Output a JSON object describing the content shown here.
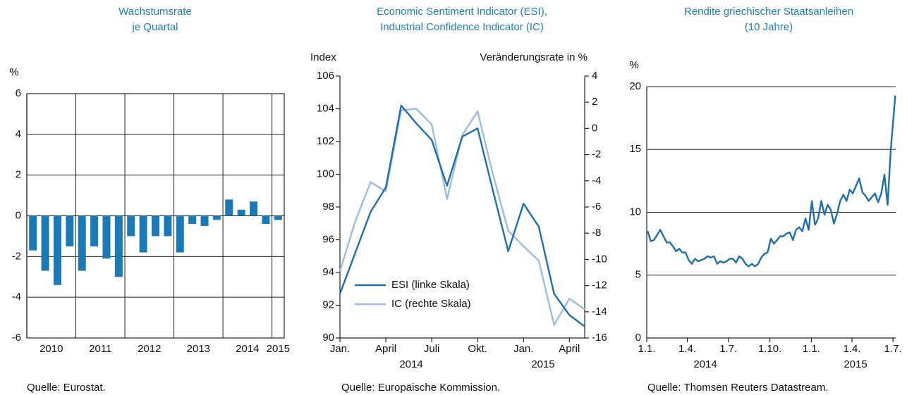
{
  "chart_data": [
    {
      "type": "bar",
      "title": [
        "Wachstumsrate",
        "je Quartal"
      ],
      "y_unit": "%",
      "groups": [
        {
          "label": "2010",
          "values": [
            -1.7,
            -2.7,
            -3.4,
            -1.5
          ]
        },
        {
          "label": "2011",
          "values": [
            -2.7,
            -1.5,
            -2.1,
            -3.0
          ]
        },
        {
          "label": "2012",
          "values": [
            -1.0,
            -1.8,
            -1.0,
            -1.0
          ]
        },
        {
          "label": "2013",
          "values": [
            -1.8,
            -0.4,
            -0.5,
            -0.2
          ]
        },
        {
          "label": "2014",
          "values": [
            0.8,
            0.3,
            0.7,
            -0.4
          ]
        },
        {
          "label": "2015",
          "values": [
            -0.2
          ]
        }
      ],
      "color": "#1a7ab8",
      "ylim": [
        -6,
        6
      ],
      "yticks": [
        -6,
        -4,
        -2,
        0,
        2,
        4,
        6
      ],
      "grid": true,
      "source": "Quelle: Eurostat."
    },
    {
      "type": "line",
      "title": [
        "Economic Sentiment Indicator (ESI),",
        "Industrial Confidence Indicator (IC)"
      ],
      "y_label": "Index",
      "y2_label": "Veränderungsrate in %",
      "categories": [
        "Jan.",
        null,
        null,
        "April",
        null,
        null,
        "Juli",
        null,
        null,
        "Okt.",
        null,
        null,
        "Jan.",
        null,
        null,
        "April",
        null
      ],
      "years": [
        "2014",
        "2015"
      ],
      "series": [
        {
          "name": "ESI (linke Skala)",
          "color": "#1f6fad",
          "values": [
            92.7,
            95.2,
            97.7,
            99.2,
            104.2,
            103.1,
            102.1,
            99.3,
            102.3,
            102.8,
            99.0,
            95.3,
            98.2,
            96.8,
            92.7,
            91.4,
            90.7
          ]
        },
        {
          "name": "IC (rechte Skala)",
          "color": "#9bbde0",
          "axis": "y2",
          "values": [
            -10.9,
            -7.1,
            -4.1,
            -4.8,
            1.4,
            1.5,
            0.3,
            -5.4,
            -0.5,
            1.3,
            -3.5,
            -7.8,
            -9.0,
            -10.1,
            -15.0,
            -13.0,
            -13.8
          ]
        }
      ],
      "ylim": [
        90,
        106
      ],
      "yticks": [
        90,
        92,
        94,
        96,
        98,
        100,
        102,
        104,
        106
      ],
      "y2lim": [
        -16,
        4
      ],
      "y2ticks": [
        -16,
        -14,
        -12,
        -10,
        -8,
        -6,
        -4,
        -2,
        0,
        2,
        4
      ],
      "legend": "lower left",
      "source": "Quelle: Europäische Kommission."
    },
    {
      "type": "line",
      "title": [
        "Rendite griechischer Staatsanleihen",
        "(10 Jahre)"
      ],
      "y_unit": "%",
      "x": [
        "2014-01-03",
        "2014-01-10",
        "2014-01-17",
        "2014-01-24",
        "2014-01-31",
        "2014-02-07",
        "2014-02-14",
        "2014-02-21",
        "2014-02-28",
        "2014-03-07",
        "2014-03-14",
        "2014-03-21",
        "2014-03-28",
        "2014-04-04",
        "2014-04-11",
        "2014-04-18",
        "2014-04-25",
        "2014-05-02",
        "2014-05-09",
        "2014-05-16",
        "2014-05-23",
        "2014-05-30",
        "2014-06-06",
        "2014-06-13",
        "2014-06-20",
        "2014-06-27",
        "2014-07-04",
        "2014-07-11",
        "2014-07-18",
        "2014-07-25",
        "2014-08-01",
        "2014-08-08",
        "2014-08-15",
        "2014-08-22",
        "2014-08-29",
        "2014-09-05",
        "2014-09-12",
        "2014-09-19",
        "2014-09-26",
        "2014-10-03",
        "2014-10-10",
        "2014-10-17",
        "2014-10-24",
        "2014-10-31",
        "2014-11-07",
        "2014-11-14",
        "2014-11-21",
        "2014-11-28",
        "2014-12-05",
        "2014-12-12",
        "2014-12-19",
        "2014-12-26",
        "2015-01-02",
        "2015-01-09",
        "2015-01-16",
        "2015-01-23",
        "2015-01-30",
        "2015-02-06",
        "2015-02-13",
        "2015-02-20",
        "2015-02-27",
        "2015-03-06",
        "2015-03-13",
        "2015-03-20",
        "2015-03-27",
        "2015-04-03",
        "2015-04-10",
        "2015-04-17",
        "2015-04-24",
        "2015-05-01",
        "2015-05-08",
        "2015-05-15",
        "2015-05-22",
        "2015-05-29",
        "2015-06-05",
        "2015-06-12",
        "2015-06-19",
        "2015-06-26",
        "2015-07-06"
      ],
      "values": [
        8.5,
        7.7,
        7.8,
        8.2,
        8.6,
        8.1,
        7.6,
        7.6,
        7.3,
        6.9,
        7.1,
        6.8,
        6.8,
        6.2,
        5.9,
        6.3,
        6.1,
        6.2,
        6.3,
        6.5,
        6.4,
        6.5,
        5.9,
        6.1,
        6.0,
        6.1,
        6.3,
        6.3,
        6.0,
        6.5,
        6.3,
        5.9,
        5.7,
        5.9,
        5.7,
        5.9,
        6.4,
        6.7,
        6.8,
        7.9,
        7.5,
        7.8,
        8.1,
        8.1,
        8.3,
        8.4,
        7.8,
        8.6,
        8.8,
        8.5,
        9.5,
        8.6,
        10.9,
        9.0,
        9.5,
        10.9,
        9.8,
        10.6,
        10.2,
        9.1,
        9.9,
        10.9,
        11.4,
        10.9,
        11.8,
        11.5,
        12.1,
        12.7,
        11.6,
        11.3,
        10.9,
        11.2,
        11.5,
        10.8,
        11.5,
        13.0,
        10.6,
        15.0,
        19.3
      ],
      "color": "#1f6fad",
      "xlim": [
        "2014-01-01",
        "2015-07-07"
      ],
      "xticks": [
        {
          "value": "2014-01-01",
          "label": "1.1."
        },
        {
          "value": "2014-04-01",
          "label": "1.4."
        },
        {
          "value": "2014-07-01",
          "label": "1.7."
        },
        {
          "value": "2014-10-01",
          "label": "1.10."
        },
        {
          "value": "2015-01-01",
          "label": "1.1."
        },
        {
          "value": "2015-04-01",
          "label": "1.4."
        },
        {
          "value": "2015-07-01",
          "label": "1.7."
        }
      ],
      "years": [
        "2014",
        "2015"
      ],
      "ylim": [
        0,
        20
      ],
      "yticks": [
        0,
        5,
        10,
        15,
        20
      ],
      "grid": true,
      "source": "Quelle: Thomsen Reuters Datastream."
    }
  ]
}
